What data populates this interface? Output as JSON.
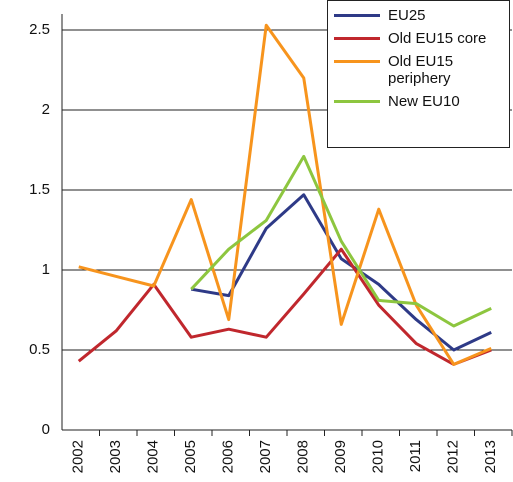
{
  "chart_data": {
    "type": "line",
    "categories": [
      "2002",
      "2003",
      "2004",
      "2005",
      "2006",
      "2007",
      "2008",
      "2009",
      "2010",
      "2011",
      "2012",
      "2013"
    ],
    "series": [
      {
        "name": "EU25",
        "color": "#2e3a87",
        "values": [
          null,
          null,
          null,
          0.88,
          0.84,
          1.26,
          1.47,
          1.07,
          0.91,
          0.69,
          0.5,
          0.61
        ]
      },
      {
        "name": "Old EU15 core",
        "color": "#c0272d",
        "values": [
          0.43,
          0.62,
          0.91,
          0.58,
          0.63,
          0.58,
          0.85,
          1.13,
          0.78,
          0.54,
          0.41,
          0.5
        ]
      },
      {
        "name": "Old EU15 periphery",
        "color": "#f7941d",
        "values": [
          1.02,
          0.96,
          0.9,
          1.44,
          0.69,
          2.53,
          2.2,
          0.66,
          1.38,
          0.78,
          0.41,
          0.51
        ]
      },
      {
        "name": "New EU10",
        "color": "#8dc63f",
        "values": [
          null,
          null,
          null,
          0.88,
          1.13,
          1.31,
          1.71,
          1.18,
          0.81,
          0.79,
          0.65,
          0.76
        ]
      }
    ],
    "ylim": [
      0,
      2.6
    ],
    "yticks": [
      0,
      0.5,
      1,
      1.5,
      2,
      2.5
    ],
    "grid": true,
    "legend": "top-right"
  }
}
